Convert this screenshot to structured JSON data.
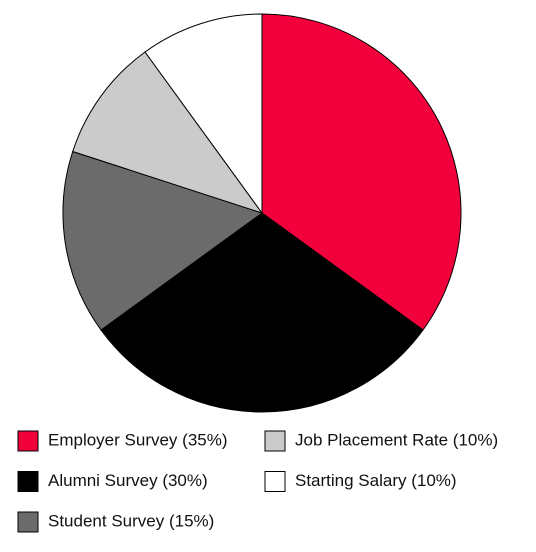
{
  "chart_data": {
    "type": "pie",
    "categories": [
      "Employer Survey (35%)",
      "Alumni Survey (30%)",
      "Student Survey (15%)",
      "Job Placement Rate (10%)",
      "Starting Salary (10%)"
    ],
    "values": [
      35,
      30,
      15,
      10,
      10
    ],
    "colors": [
      "#f2003c",
      "#000000",
      "#6b6b6b",
      "#cbcbcb",
      "#ffffff"
    ]
  }
}
